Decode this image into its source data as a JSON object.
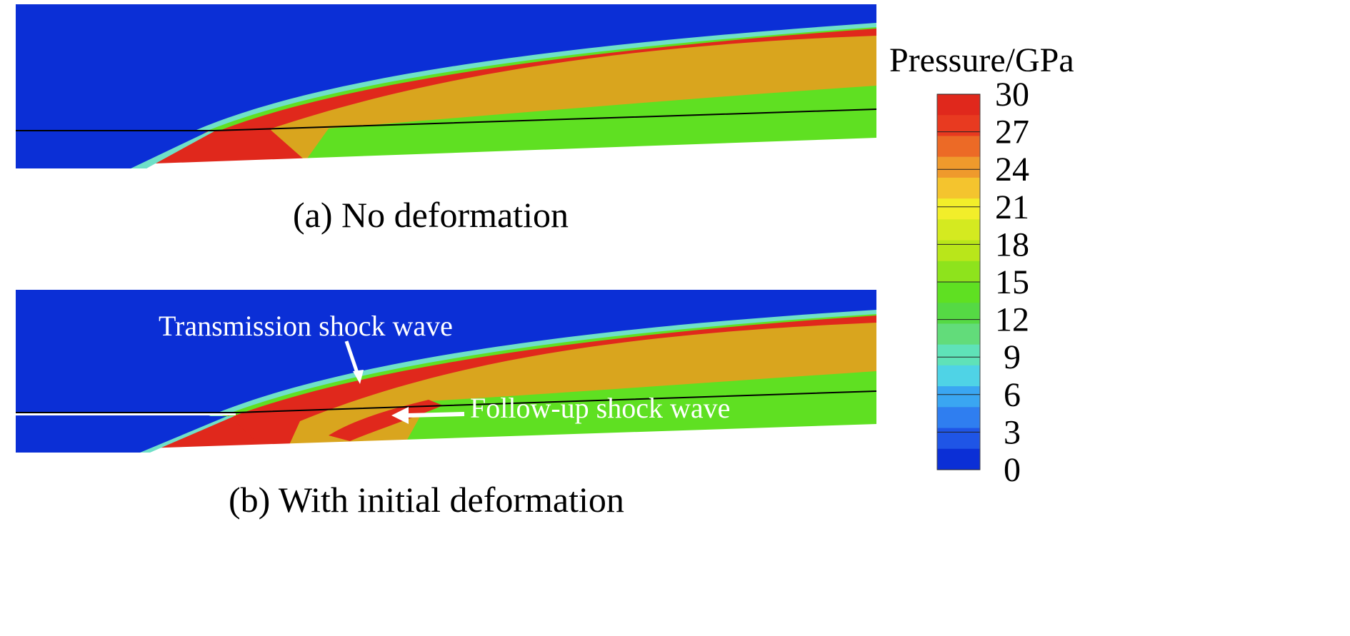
{
  "colorbar": {
    "title": "Pressure/GPa",
    "ticks": [
      "30",
      "27",
      "24",
      "21",
      "18",
      "15",
      "12",
      "9",
      "6",
      "3",
      "0"
    ],
    "min": 0,
    "max": 30,
    "colors": [
      "#0b2fd6",
      "#1f55e6",
      "#2f7ef0",
      "#3aa6f2",
      "#4fd3e6",
      "#5fe2b8",
      "#62dc7a",
      "#55d944",
      "#5fe022",
      "#8ee31c",
      "#b9e61a",
      "#d4ea20",
      "#f2ee2a",
      "#f4c42e",
      "#ef9a2c",
      "#ec6a26",
      "#e83a20",
      "#e0281c"
    ]
  },
  "panels": [
    {
      "caption": "(a) No deformation"
    },
    {
      "caption": "(b) With initial deformation"
    }
  ],
  "annotations": {
    "transmission": "Transmission shock wave",
    "followup": "Follow-up shock wave"
  },
  "palette": {
    "background_blue": "#0b2fd6",
    "red": "#e0281c",
    "orange": "#d9a51e",
    "green": "#5fe022",
    "cyan_edge": "#6fe0c8"
  }
}
